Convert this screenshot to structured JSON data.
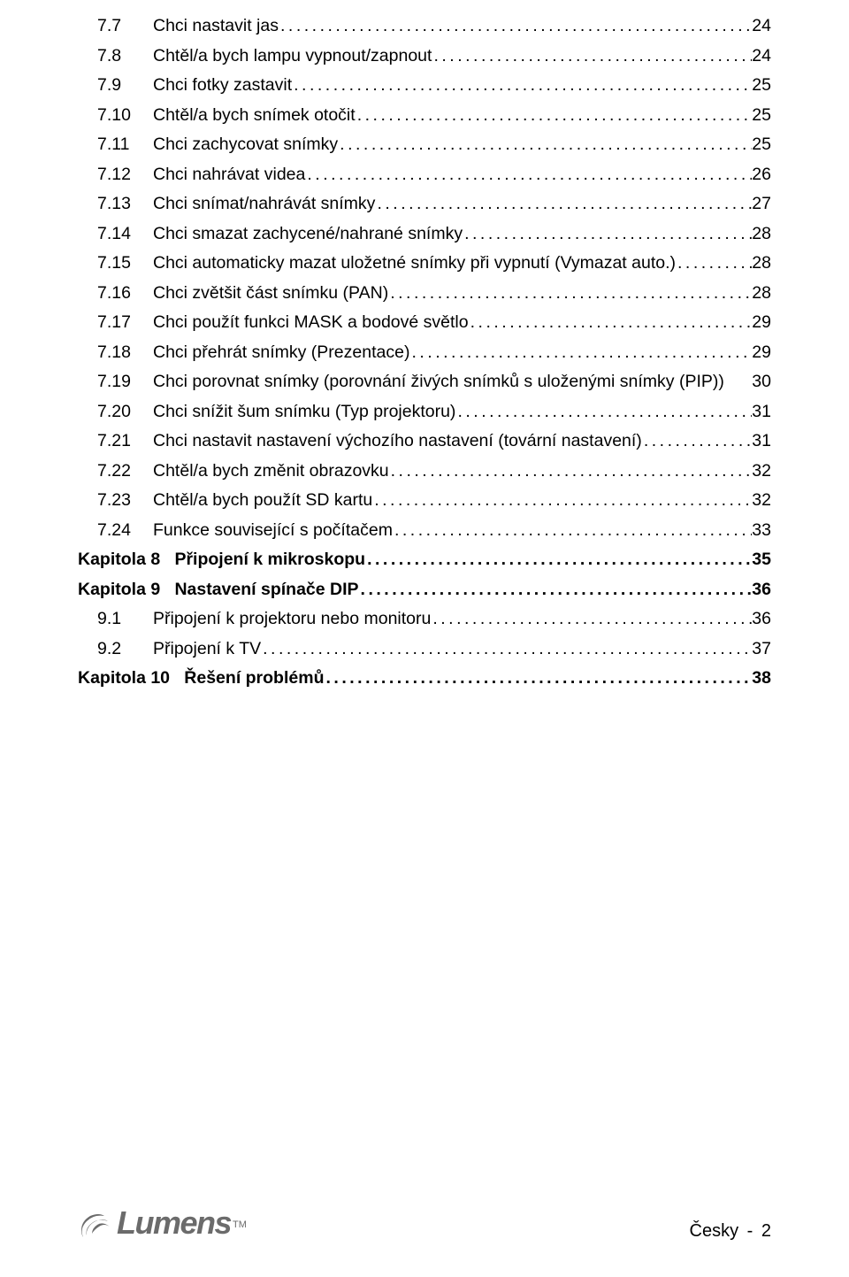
{
  "toc": [
    {
      "kind": "sub",
      "num": "7.7",
      "title": "Chci nastavit jas",
      "page": "24"
    },
    {
      "kind": "sub",
      "num": "7.8",
      "title": "Chtěl/a bych lampu vypnout/zapnout",
      "page": "24"
    },
    {
      "kind": "sub",
      "num": "7.9",
      "title": "Chci fotky zastavit",
      "page": "25"
    },
    {
      "kind": "sub",
      "num": "7.10",
      "title": "Chtěl/a bych snímek otočit",
      "page": "25"
    },
    {
      "kind": "sub",
      "num": "7.11",
      "title": "Chci zachycovat snímky",
      "page": "25"
    },
    {
      "kind": "sub",
      "num": "7.12",
      "title": "Chci nahrávat videa",
      "page": "26"
    },
    {
      "kind": "sub",
      "num": "7.13",
      "title": "Chci snímat/nahrávát snímky",
      "page": "27"
    },
    {
      "kind": "sub",
      "num": "7.14",
      "title": "Chci smazat zachycené/nahrané snímky",
      "page": "28"
    },
    {
      "kind": "sub",
      "num": "7.15",
      "title": "Chci automaticky mazat uložetné snímky při vypnutí (Vymazat auto.)",
      "page": "28"
    },
    {
      "kind": "sub",
      "num": "7.16",
      "title": "Chci zvětšit část snímku (PAN)",
      "page": "28"
    },
    {
      "kind": "sub",
      "num": "7.17",
      "title": "Chci použít funkci MASK a bodové světlo",
      "page": "29"
    },
    {
      "kind": "sub",
      "num": "7.18",
      "title": "Chci přehrát snímky (Prezentace)",
      "page": "29"
    },
    {
      "kind": "sub-nodots",
      "num": "7.19",
      "title": "Chci porovnat snímky (porovnání živých snímků s uloženými snímky (PIP))",
      "page": "30"
    },
    {
      "kind": "sub",
      "num": "7.20",
      "title": "Chci snížit šum snímku (Typ projektoru)",
      "page": "31"
    },
    {
      "kind": "sub",
      "num": "7.21",
      "title": "Chci nastavit nastavení výchozího nastavení (tovární nastavení)",
      "page": "31"
    },
    {
      "kind": "sub",
      "num": "7.22",
      "title": "Chtěl/a bych změnit obrazovku",
      "page": "32"
    },
    {
      "kind": "sub",
      "num": "7.23",
      "title": "Chtěl/a bych použít SD kartu",
      "page": "32"
    },
    {
      "kind": "sub",
      "num": "7.24",
      "title": "Funkce související s počítačem",
      "page": "33"
    },
    {
      "kind": "chapter",
      "num": "Kapitola 8",
      "title": "Připojení k mikroskopu",
      "page": "35"
    },
    {
      "kind": "chapter",
      "num": "Kapitola 9",
      "title": "Nastavení spínače DIP",
      "page": "36"
    },
    {
      "kind": "sub",
      "num": "9.1",
      "title": "Připojení k projektoru nebo monitoru",
      "page": "36"
    },
    {
      "kind": "sub",
      "num": "9.2",
      "title": "Připojení k TV",
      "page": "37"
    },
    {
      "kind": "chapter",
      "num": "Kapitola 10",
      "title": "Řešení problémů",
      "page": "38"
    }
  ],
  "footer": {
    "brand": "Lumens",
    "tm": "TM",
    "lang": "Česky",
    "dash": "-",
    "pagenum": "2"
  },
  "colors": {
    "text": "#000000",
    "logo": "#6b6b6b",
    "background": "#ffffff"
  }
}
